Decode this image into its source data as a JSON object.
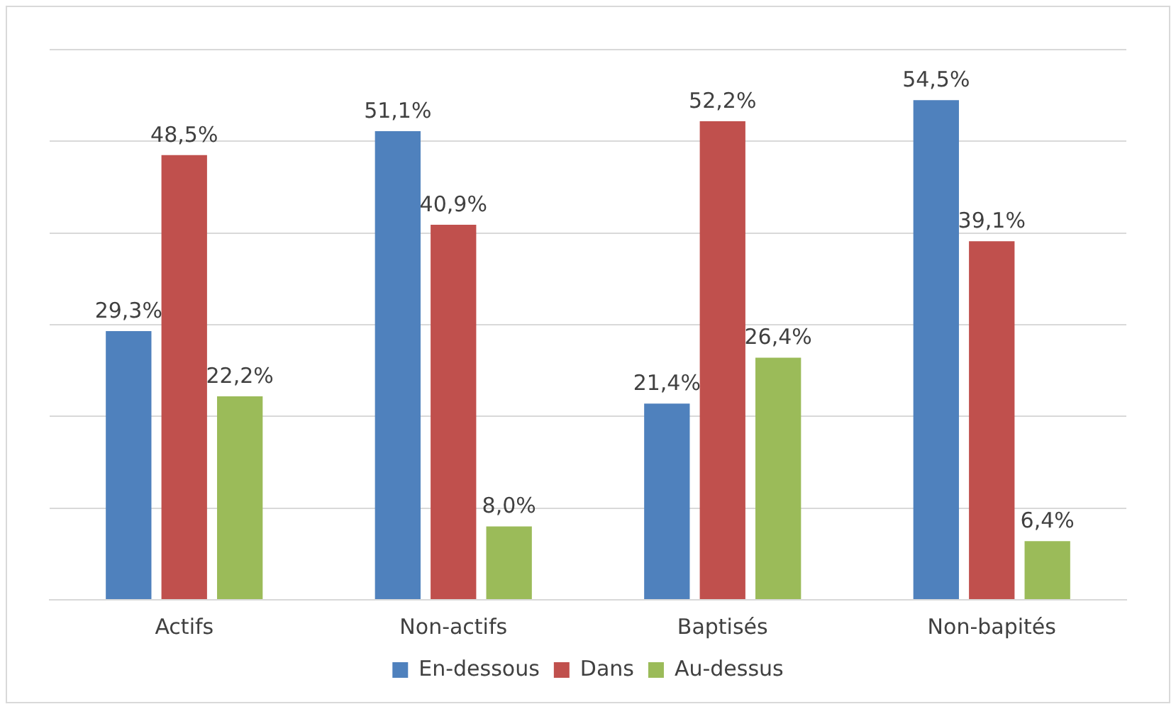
{
  "chart_data": {
    "type": "bar",
    "categories": [
      "Actifs",
      "Non-actifs",
      "Baptisés",
      "Non-bapités"
    ],
    "series": [
      {
        "name": "En-dessous",
        "color": "#4f81bd",
        "values": [
          29.3,
          51.1,
          21.4,
          54.5
        ],
        "value_labels": [
          "29,3%",
          "51,1%",
          "21,4%",
          "54,5%"
        ]
      },
      {
        "name": "Dans",
        "color": "#c0504d",
        "values": [
          48.5,
          40.9,
          52.2,
          39.1
        ],
        "value_labels": [
          "48,5%",
          "40,9%",
          "52,2%",
          "39,1%"
        ]
      },
      {
        "name": "Au-dessus",
        "color": "#9bbb59",
        "values": [
          22.2,
          8.0,
          26.4,
          6.4
        ],
        "value_labels": [
          "22,2%",
          "8,0%",
          "26,4%",
          "6,4%"
        ]
      }
    ],
    "ylim": [
      0,
      60
    ],
    "yticks": [
      {
        "value": 0,
        "label": null
      },
      {
        "value": 10,
        "label": null
      },
      {
        "value": 20,
        "label": null
      },
      {
        "value": 30,
        "label": null
      },
      {
        "value": 40,
        "label": null
      },
      {
        "value": 50,
        "label": null
      },
      {
        "value": 60,
        "label": null
      }
    ],
    "grid": "y",
    "legend": "bottom",
    "tick_labels": "x"
  }
}
